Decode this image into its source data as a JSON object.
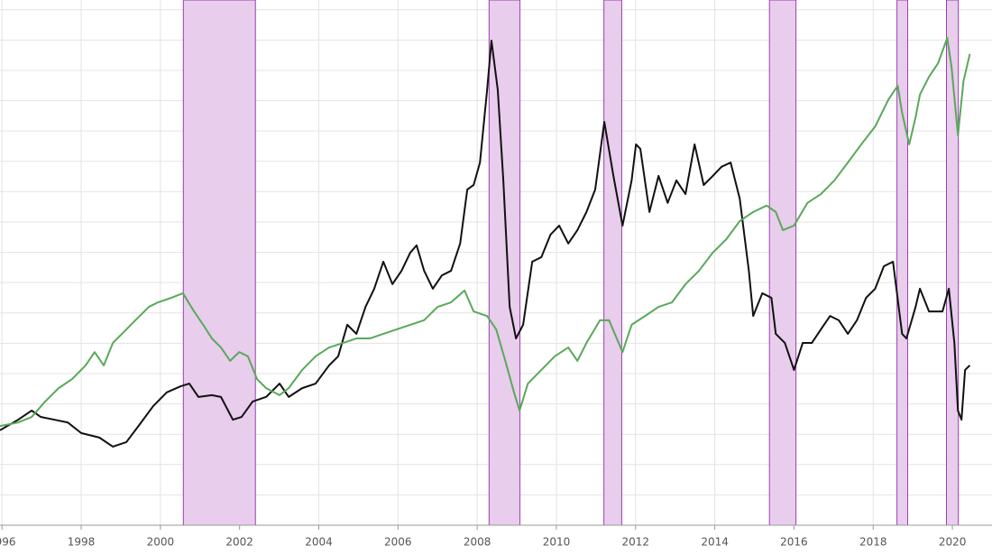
{
  "chart_data": {
    "type": "line",
    "xlim": [
      1995.95,
      2021.0
    ],
    "ylim": [
      0,
      17.32
    ],
    "xticks": [
      1996,
      1998,
      2000,
      2002,
      2004,
      2006,
      2008,
      2010,
      2012,
      2014,
      2016,
      2018,
      2020
    ],
    "yticks": [
      1,
      2,
      3,
      4,
      5,
      6,
      7,
      8,
      9,
      10,
      11,
      12,
      13,
      14,
      15,
      16,
      17
    ],
    "grid": true,
    "shaded_regions": {
      "color": "#e8cdec",
      "edge_color": "#9b3fb0",
      "ranges": [
        [
          2000.58,
          2002.4
        ],
        [
          2008.3,
          2009.08
        ],
        [
          2011.2,
          2011.65
        ],
        [
          2015.38,
          2016.05
        ],
        [
          2018.6,
          2018.87
        ],
        [
          2019.85,
          2020.15
        ]
      ]
    },
    "series": [
      {
        "color": "#111111",
        "x": [
          1995.95,
          1996.41,
          1996.75,
          1996.98,
          1997.32,
          1997.66,
          1998.0,
          1998.46,
          1998.8,
          1999.14,
          1999.48,
          1999.82,
          2000.16,
          2000.51,
          2000.73,
          2000.96,
          2001.3,
          2001.53,
          2001.83,
          2002.05,
          2002.33,
          2002.67,
          2003.01,
          2003.24,
          2003.58,
          2003.92,
          2004.26,
          2004.49,
          2004.72,
          2004.95,
          2005.18,
          2005.4,
          2005.63,
          2005.86,
          2006.09,
          2006.31,
          2006.47,
          2006.66,
          2006.88,
          2007.11,
          2007.34,
          2007.57,
          2007.75,
          2007.91,
          2008.07,
          2008.25,
          2008.36,
          2008.52,
          2008.66,
          2008.82,
          2008.98,
          2009.16,
          2009.39,
          2009.62,
          2009.85,
          2010.07,
          2010.3,
          2010.53,
          2010.76,
          2010.98,
          2011.21,
          2011.44,
          2011.67,
          2011.9,
          2012.01,
          2012.12,
          2012.35,
          2012.58,
          2012.81,
          2013.03,
          2013.26,
          2013.49,
          2013.72,
          2013.95,
          2014.17,
          2014.4,
          2014.63,
          2014.86,
          2014.97,
          2015.2,
          2015.43,
          2015.54,
          2015.77,
          2016.0,
          2016.22,
          2016.45,
          2016.68,
          2016.91,
          2017.13,
          2017.36,
          2017.59,
          2017.82,
          2018.05,
          2018.27,
          2018.5,
          2018.73,
          2018.84,
          2019.07,
          2019.18,
          2019.41,
          2019.75,
          2019.91,
          2020.05,
          2020.14,
          2020.23,
          2020.32,
          2020.44
        ],
        "values": [
          3.13,
          3.48,
          3.78,
          3.57,
          3.48,
          3.39,
          3.04,
          2.89,
          2.59,
          2.74,
          3.33,
          3.93,
          4.38,
          4.58,
          4.67,
          4.23,
          4.29,
          4.23,
          3.48,
          3.57,
          4.08,
          4.23,
          4.67,
          4.23,
          4.52,
          4.67,
          5.27,
          5.57,
          6.61,
          6.31,
          7.2,
          7.8,
          8.69,
          7.95,
          8.39,
          8.99,
          9.23,
          8.39,
          7.8,
          8.24,
          8.39,
          9.29,
          11.07,
          11.22,
          11.96,
          14.35,
          15.98,
          14.35,
          11.37,
          7.2,
          6.16,
          6.61,
          8.69,
          8.84,
          9.58,
          9.88,
          9.29,
          9.73,
          10.33,
          11.07,
          13.3,
          11.52,
          9.88,
          11.37,
          12.56,
          12.41,
          10.33,
          11.52,
          10.63,
          11.37,
          10.92,
          12.56,
          11.22,
          11.52,
          11.82,
          11.96,
          10.77,
          8.39,
          6.9,
          7.65,
          7.5,
          6.31,
          6.01,
          5.12,
          6.01,
          6.01,
          6.46,
          6.9,
          6.76,
          6.31,
          6.76,
          7.5,
          7.8,
          8.54,
          8.69,
          6.31,
          6.16,
          7.2,
          7.8,
          7.05,
          7.05,
          7.8,
          6.01,
          3.78,
          3.48,
          5.12,
          5.27
        ]
      },
      {
        "color": "#5aa85a",
        "x": [
          1995.95,
          1996.41,
          1996.75,
          1997.09,
          1997.43,
          1997.77,
          1998.11,
          1998.34,
          1998.57,
          1998.8,
          1999.03,
          1999.37,
          1999.71,
          1999.94,
          2000.28,
          2000.57,
          2000.85,
          2001.08,
          2001.3,
          2001.53,
          2001.76,
          2001.99,
          2002.21,
          2002.44,
          2002.67,
          2003.01,
          2003.24,
          2003.58,
          2003.92,
          2004.26,
          2004.61,
          2004.95,
          2005.29,
          2005.63,
          2005.97,
          2006.31,
          2006.66,
          2007.0,
          2007.34,
          2007.68,
          2007.91,
          2008.25,
          2008.48,
          2008.71,
          2008.93,
          2009.07,
          2009.28,
          2009.62,
          2009.96,
          2010.3,
          2010.53,
          2010.76,
          2011.1,
          2011.33,
          2011.67,
          2011.9,
          2012.24,
          2012.58,
          2012.92,
          2013.26,
          2013.6,
          2013.95,
          2014.29,
          2014.63,
          2014.97,
          2015.31,
          2015.54,
          2015.72,
          2016.0,
          2016.34,
          2016.68,
          2017.02,
          2017.36,
          2017.7,
          2018.05,
          2018.39,
          2018.62,
          2018.73,
          2018.91,
          2019.07,
          2019.18,
          2019.41,
          2019.64,
          2019.87,
          2019.98,
          2020.14,
          2020.28,
          2020.44
        ],
        "values": [
          3.27,
          3.39,
          3.57,
          4.08,
          4.52,
          4.82,
          5.27,
          5.71,
          5.27,
          6.01,
          6.31,
          6.76,
          7.2,
          7.35,
          7.5,
          7.65,
          7.05,
          6.61,
          6.16,
          5.86,
          5.42,
          5.71,
          5.57,
          4.82,
          4.52,
          4.29,
          4.52,
          5.12,
          5.57,
          5.86,
          6.01,
          6.16,
          6.16,
          6.31,
          6.46,
          6.61,
          6.76,
          7.2,
          7.35,
          7.74,
          7.05,
          6.9,
          6.46,
          5.42,
          4.38,
          3.78,
          4.67,
          5.12,
          5.57,
          5.86,
          5.42,
          6.01,
          6.76,
          6.76,
          5.71,
          6.61,
          6.9,
          7.2,
          7.35,
          7.95,
          8.39,
          8.99,
          9.43,
          10.03,
          10.33,
          10.54,
          10.33,
          9.73,
          9.88,
          10.63,
          10.92,
          11.37,
          11.96,
          12.56,
          13.15,
          14.05,
          14.49,
          13.6,
          12.56,
          13.45,
          14.2,
          14.79,
          15.24,
          16.07,
          15.09,
          12.86,
          14.64,
          15.54
        ]
      }
    ]
  }
}
